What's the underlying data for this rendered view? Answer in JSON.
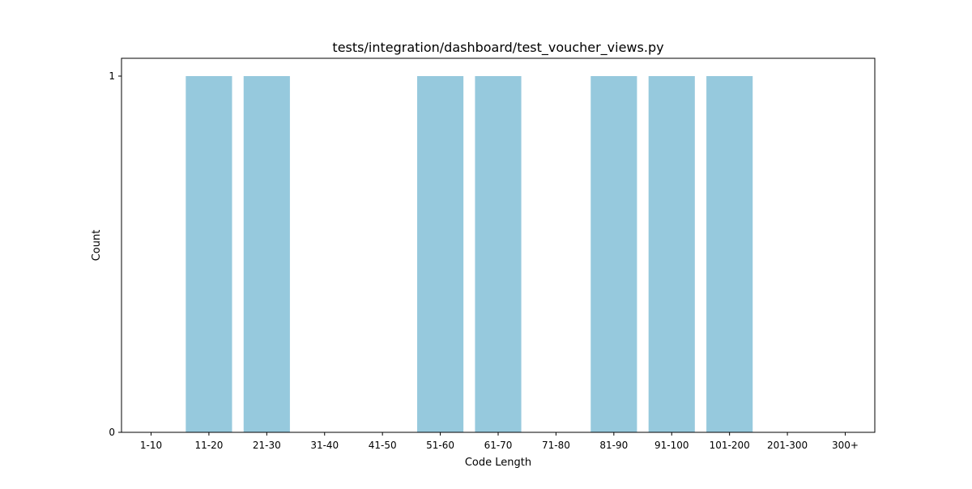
{
  "chart_data": {
    "type": "bar",
    "title": "tests/integration/dashboard/test_voucher_views.py",
    "xlabel": "Code Length",
    "ylabel": "Count",
    "categories": [
      "1-10",
      "11-20",
      "21-30",
      "31-40",
      "41-50",
      "51-60",
      "61-70",
      "71-80",
      "81-90",
      "91-100",
      "101-200",
      "201-300",
      "300+"
    ],
    "values": [
      0,
      1,
      1,
      0,
      0,
      1,
      1,
      0,
      1,
      1,
      1,
      0,
      0
    ],
    "ylim": [
      0,
      1
    ],
    "yticks": [
      0,
      1
    ],
    "grid": false,
    "bar_color": "#96c9dd"
  }
}
